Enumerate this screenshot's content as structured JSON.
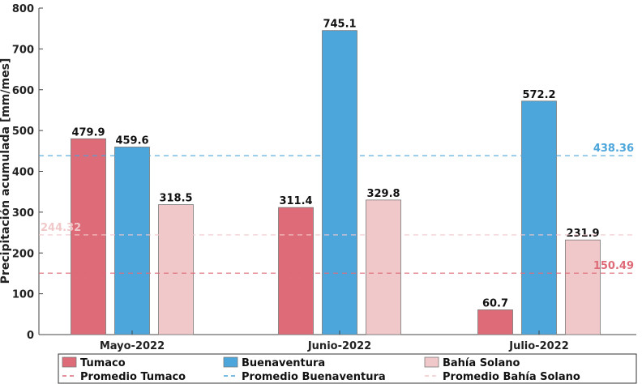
{
  "chart_data": {
    "type": "bar",
    "title": "",
    "xlabel": "",
    "ylabel": "Precipitación acumulada [mm/mes]",
    "ylim": [
      0,
      800
    ],
    "yticks": [
      0,
      100,
      200,
      300,
      400,
      500,
      600,
      700,
      800
    ],
    "categories": [
      "Mayo-2022",
      "Junio-2022",
      "Julio-2022"
    ],
    "series": [
      {
        "name": "Tumaco",
        "values": [
          479.9,
          311.4,
          60.7
        ],
        "value_labels": [
          "479.9",
          "311.4",
          "60.7"
        ],
        "color": "#de6b78"
      },
      {
        "name": "Buenaventura",
        "values": [
          459.6,
          745.1,
          572.2
        ],
        "value_labels": [
          "459.6",
          "745.1",
          "572.2"
        ],
        "color": "#4ca6dc"
      },
      {
        "name": "Bahía Solano",
        "values": [
          318.5,
          329.8,
          231.9
        ],
        "value_labels": [
          "318.5",
          "329.8",
          "231.9"
        ],
        "color": "#f1c8c9"
      }
    ],
    "averages": [
      {
        "name": "Promedio Tumaco",
        "value": 150.49,
        "label": "150.49",
        "color": "#de6b78"
      },
      {
        "name": "Promedio Buenaventura",
        "value": 438.36,
        "label": "438.36",
        "color": "#4ca6dc"
      },
      {
        "name": "Promedio Bahía Solano",
        "value": 244.32,
        "label": "244.32",
        "color": "#f1c8c9"
      }
    ],
    "legend_position": "bottom",
    "grid": false
  }
}
